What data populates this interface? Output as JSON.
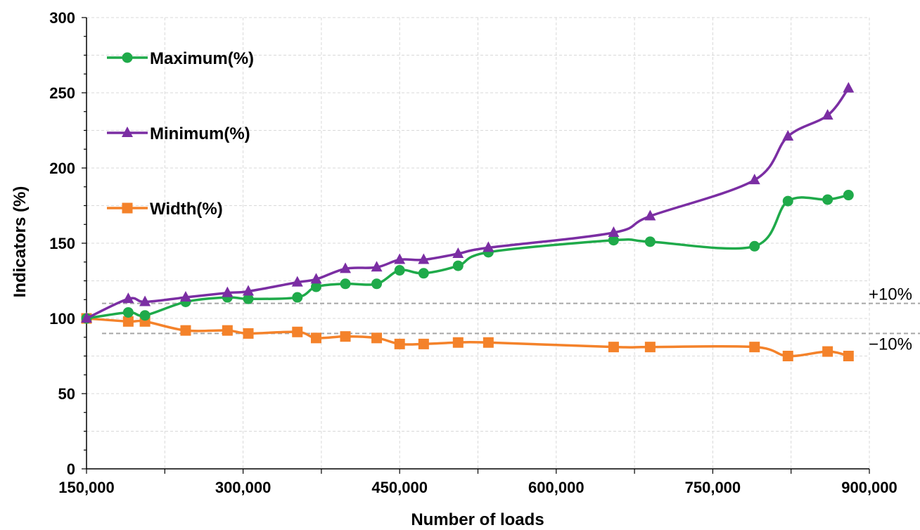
{
  "chart_data": {
    "type": "line",
    "xlabel": "Number of loads",
    "ylabel": "Indicators (%)",
    "xlim": [
      150000,
      900000
    ],
    "ylim": [
      0,
      300
    ],
    "x_ticks": [
      "150,000",
      "300,000",
      "450,000",
      "600,000",
      "750,000",
      "900,000"
    ],
    "y_ticks": [
      "0",
      "50",
      "100",
      "150",
      "200",
      "250",
      "300"
    ],
    "grid": true,
    "legend_position": "top-left",
    "reference_lines": [
      {
        "label": "+10%",
        "y": 110
      },
      {
        "label": "−10%",
        "y": 90
      }
    ],
    "x": [
      150000,
      190000,
      206000,
      245000,
      285000,
      305000,
      352000,
      370000,
      398000,
      428000,
      450000,
      473000,
      506000,
      535000,
      655000,
      690000,
      790000,
      822000,
      860000,
      880000
    ],
    "series": [
      {
        "name": "Maximum(%)",
        "color": "#1faa4a",
        "marker": "circle",
        "values": [
          100,
          104,
          102,
          111,
          114,
          113,
          114,
          121,
          123,
          123,
          132,
          130,
          135,
          144,
          152,
          151,
          148,
          178,
          179,
          182
        ]
      },
      {
        "name": "Minimum(%)",
        "color": "#7b2ea3",
        "marker": "triangle",
        "values": [
          100,
          113,
          111,
          114,
          117,
          118,
          124,
          126,
          133,
          134,
          139,
          139,
          143,
          147,
          157,
          168,
          192,
          221,
          235,
          253
        ]
      },
      {
        "name": "Width(%)",
        "color": "#f4822a",
        "marker": "square",
        "values": [
          100,
          98,
          98,
          92,
          92,
          90,
          91,
          87,
          88,
          87,
          83,
          83,
          84,
          84,
          81,
          81,
          81,
          75,
          78,
          75
        ]
      }
    ]
  }
}
